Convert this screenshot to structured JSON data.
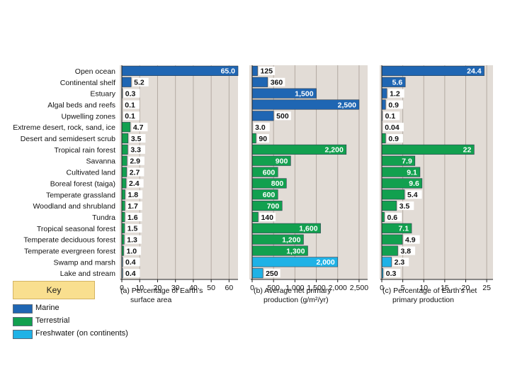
{
  "colors": {
    "marine": "#1f66b3",
    "terrestrial": "#12a04f",
    "freshwater": "#1fb2e6",
    "panel_bg": "#e2dcd6",
    "key_bg": "#f9df8f"
  },
  "key": {
    "title": "Key",
    "items": [
      {
        "label": "Marine",
        "color": "#1f66b3"
      },
      {
        "label": "Terrestrial",
        "color": "#12a04f"
      },
      {
        "label": "Freshwater (on continents)",
        "color": "#1fb2e6"
      }
    ]
  },
  "chart_data": {
    "type": "bar",
    "orientation": "horizontal",
    "categories": [
      "Open ocean",
      "Continental shelf",
      "Estuary",
      "Algal beds and reefs",
      "Upwelling zones",
      "Extreme desert, rock, sand, ice",
      "Desert and semidesert scrub",
      "Tropical rain forest",
      "Savanna",
      "Cultivated land",
      "Boreal forest (taiga)",
      "Temperate grassland",
      "Woodland and shrubland",
      "Tundra",
      "Tropical seasonal forest",
      "Temperate deciduous forest",
      "Temperate evergreen forest",
      "Swamp and marsh",
      "Lake and stream"
    ],
    "ecosystem_type": [
      "marine",
      "marine",
      "marine",
      "marine",
      "marine",
      "terrestrial",
      "terrestrial",
      "terrestrial",
      "terrestrial",
      "terrestrial",
      "terrestrial",
      "terrestrial",
      "terrestrial",
      "terrestrial",
      "terrestrial",
      "terrestrial",
      "terrestrial",
      "freshwater",
      "freshwater"
    ],
    "panels": [
      {
        "id": "a",
        "caption": [
          "(a) Percentage of Earth's",
          "surface area"
        ],
        "xlim": [
          0,
          65
        ],
        "ticks": [
          0,
          10,
          20,
          30,
          40,
          50,
          60
        ],
        "tick_labels": [
          "0",
          "10",
          "20",
          "30",
          "40",
          "50",
          "60"
        ],
        "values": [
          65.0,
          5.2,
          0.3,
          0.1,
          0.1,
          4.7,
          3.5,
          3.3,
          2.9,
          2.7,
          2.4,
          1.8,
          1.7,
          1.6,
          1.5,
          1.3,
          1.0,
          0.4,
          0.4
        ],
        "labels": [
          "65.0",
          "5.2",
          "0.3",
          "0.1",
          "0.1",
          "4.7",
          "3.5",
          "3.3",
          "2.9",
          "2.7",
          "2.4",
          "1.8",
          "1.7",
          "1.6",
          "1.5",
          "1.3",
          "1.0",
          "0.4",
          "0.4"
        ]
      },
      {
        "id": "b",
        "caption": [
          "(b) Average net primary",
          "production (g/m²/yr)"
        ],
        "xlim": [
          0,
          2700
        ],
        "ticks": [
          0,
          500,
          1000,
          1500,
          2000,
          2500
        ],
        "tick_labels": [
          "0",
          "500",
          "1,000",
          "1,500",
          "2,000",
          "2,500"
        ],
        "values": [
          125,
          360,
          1500,
          2500,
          500,
          3.0,
          90,
          2200,
          900,
          600,
          800,
          600,
          700,
          140,
          1600,
          1200,
          1300,
          2000,
          250
        ],
        "labels": [
          "125",
          "360",
          "1,500",
          "2,500",
          "500",
          "3.0",
          "90",
          "2,200",
          "900",
          "600",
          "800",
          "600",
          "700",
          "140",
          "1,600",
          "1,200",
          "1,300",
          "2,000",
          "250"
        ]
      },
      {
        "id": "c",
        "caption": [
          "(c) Percentage of Earth's net",
          "primary production"
        ],
        "xlim": [
          0,
          26.5
        ],
        "ticks": [
          0,
          5,
          10,
          15,
          20,
          25
        ],
        "tick_labels": [
          "0",
          "5",
          "10",
          "15",
          "20",
          "25"
        ],
        "values": [
          24.4,
          5.6,
          1.2,
          0.9,
          0.1,
          0.04,
          0.9,
          22,
          7.9,
          9.1,
          9.6,
          5.4,
          3.5,
          0.6,
          7.1,
          4.9,
          3.8,
          2.3,
          0.3
        ],
        "labels": [
          "24.4",
          "5.6",
          "1.2",
          "0.9",
          "0.1",
          "0.04",
          "0.9",
          "22",
          "7.9",
          "9.1",
          "9.6",
          "5.4",
          "3.5",
          "0.6",
          "7.1",
          "4.9",
          "3.8",
          "2.3",
          "0.3"
        ]
      }
    ]
  }
}
